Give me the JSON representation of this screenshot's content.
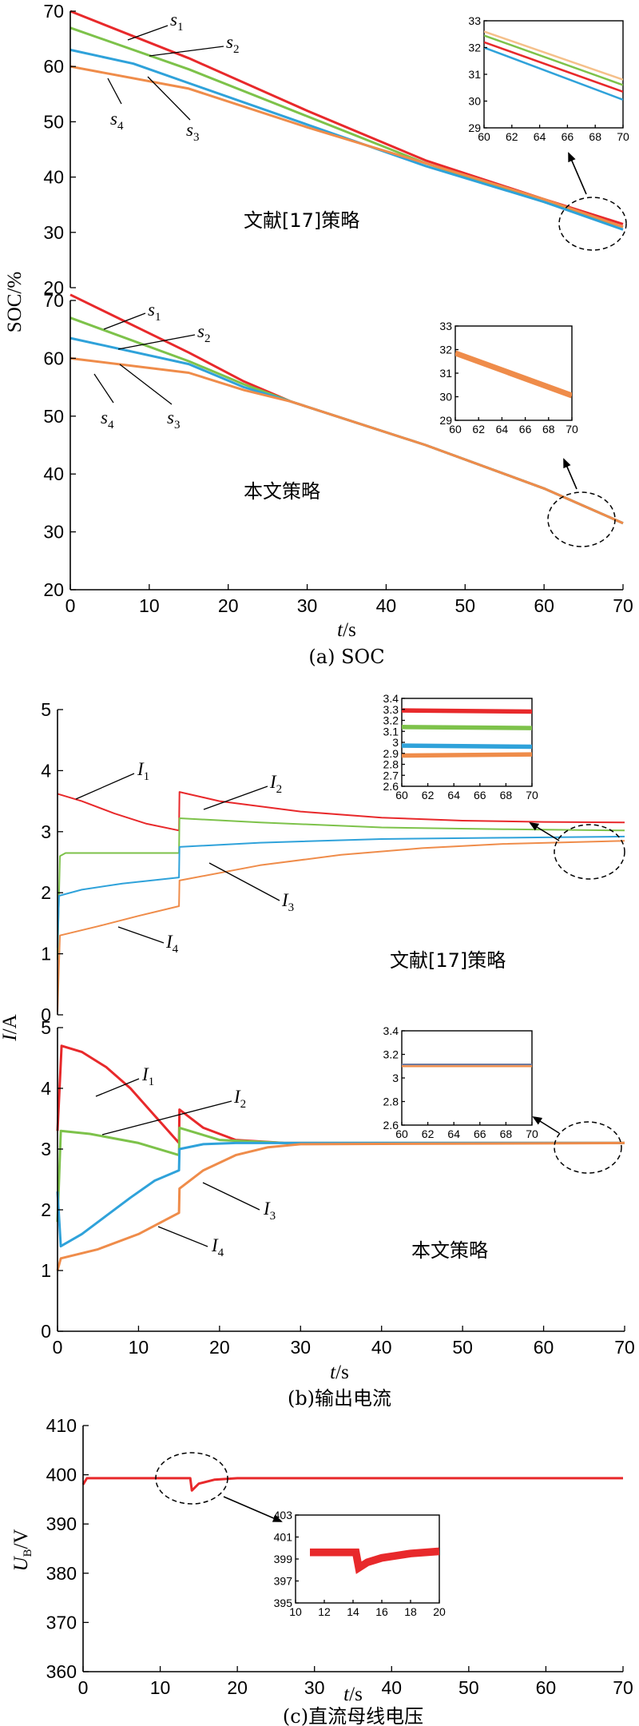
{
  "chart_data": [
    {
      "id": "soc_ref",
      "type": "line",
      "panel": "(a) SOC - upper",
      "annotation": "文献[17]策略",
      "ylabel": "SOC/%",
      "xlim": [
        0,
        70
      ],
      "ylim": [
        20,
        70
      ],
      "x_ticks": [],
      "y_ticks": [
        20,
        30,
        40,
        50,
        60,
        70
      ],
      "series": [
        {
          "name": "s1",
          "color": "#e8292b",
          "points": [
            [
              0,
              70
            ],
            [
              15,
              61.5
            ],
            [
              30,
              52
            ],
            [
              45,
              43
            ],
            [
              60,
              36
            ],
            [
              70,
              31.5
            ]
          ]
        },
        {
          "name": "s2",
          "color": "#7dc24a",
          "points": [
            [
              0,
              67
            ],
            [
              15,
              59.5
            ],
            [
              30,
              51
            ],
            [
              45,
              42.5
            ],
            [
              60,
              35.5
            ],
            [
              70,
              31
            ]
          ]
        },
        {
          "name": "s3",
          "color": "#2fa2da",
          "points": [
            [
              0,
              63
            ],
            [
              8,
              60.5
            ],
            [
              15,
              57
            ],
            [
              30,
              49.5
            ],
            [
              45,
              42
            ],
            [
              60,
              35.5
            ],
            [
              70,
              30.5
            ]
          ]
        },
        {
          "name": "s4",
          "color": "#ef8c4a",
          "points": [
            [
              0,
              60
            ],
            [
              15,
              56
            ],
            [
              30,
              49
            ],
            [
              45,
              42.5
            ],
            [
              60,
              36
            ],
            [
              70,
              31
            ]
          ]
        }
      ],
      "inset": {
        "xlim": [
          60,
          70
        ],
        "ylim": [
          29,
          33
        ],
        "x_ticks": [
          60,
          62,
          64,
          66,
          68,
          70
        ],
        "y_ticks": [
          29,
          30,
          31,
          32,
          33
        ],
        "series": [
          {
            "color": "#f5c08a",
            "points": [
              [
                60,
                32.6
              ],
              [
                70,
                30.8
              ]
            ]
          },
          {
            "color": "#7dc24a",
            "points": [
              [
                60,
                32.45
              ],
              [
                70,
                30.6
              ]
            ]
          },
          {
            "color": "#e8292b",
            "points": [
              [
                60,
                32.2
              ],
              [
                70,
                30.35
              ]
            ]
          },
          {
            "color": "#2fa2da",
            "points": [
              [
                60,
                32.0
              ],
              [
                70,
                30.05
              ]
            ]
          }
        ]
      }
    },
    {
      "id": "soc_ours",
      "type": "line",
      "panel": "(a) SOC - lower",
      "annotation": "本文策略",
      "xlabel": "t/s",
      "xlim": [
        0,
        70
      ],
      "ylim": [
        20,
        70
      ],
      "x_ticks": [
        0,
        10,
        20,
        30,
        40,
        50,
        60,
        70
      ],
      "y_ticks": [
        20,
        30,
        40,
        50,
        60,
        70
      ],
      "series": [
        {
          "name": "s1",
          "color": "#e8292b",
          "points": [
            [
              0,
              71
            ],
            [
              15,
              61
            ],
            [
              22,
              56
            ],
            [
              28,
              52.5
            ],
            [
              45,
              45
            ],
            [
              60,
              37.5
            ],
            [
              70,
              31.5
            ]
          ]
        },
        {
          "name": "s2",
          "color": "#7dc24a",
          "points": [
            [
              0,
              67
            ],
            [
              15,
              59.5
            ],
            [
              22,
              55.5
            ],
            [
              28,
              52.5
            ],
            [
              45,
              45
            ],
            [
              60,
              37.5
            ],
            [
              70,
              31.5
            ]
          ]
        },
        {
          "name": "s3",
          "color": "#2fa2da",
          "points": [
            [
              0,
              63.5
            ],
            [
              15,
              59
            ],
            [
              22,
              55
            ],
            [
              28,
              52.5
            ],
            [
              45,
              45
            ],
            [
              60,
              37.5
            ],
            [
              70,
              31.5
            ]
          ]
        },
        {
          "name": "s4",
          "color": "#ef8c4a",
          "points": [
            [
              0,
              60
            ],
            [
              15,
              57.5
            ],
            [
              22,
              54.5
            ],
            [
              28,
              52.5
            ],
            [
              45,
              45
            ],
            [
              60,
              37.5
            ],
            [
              70,
              31.5
            ]
          ]
        }
      ],
      "inset": {
        "xlim": [
          60,
          70
        ],
        "ylim": [
          29,
          33
        ],
        "x_ticks": [
          60,
          62,
          64,
          66,
          68,
          70
        ],
        "y_ticks": [
          29,
          30,
          31,
          32,
          33
        ],
        "series": [
          {
            "color": "#ef8c4a",
            "points": [
              [
                60,
                31.85
              ],
              [
                70,
                30.05
              ]
            ],
            "band": 0.12
          }
        ]
      }
    },
    {
      "id": "cur_ref",
      "type": "line",
      "panel": "(b) output current - upper",
      "annotation": "文献[17]策略",
      "ylabel": "I/A",
      "xlim": [
        0,
        70
      ],
      "ylim": [
        0,
        5
      ],
      "x_ticks": [],
      "y_ticks": [
        0,
        1,
        2,
        3,
        4,
        5
      ],
      "series": [
        {
          "name": "I1",
          "color": "#e8292b",
          "points": [
            [
              0,
              3.62
            ],
            [
              3,
              3.5
            ],
            [
              7,
              3.3
            ],
            [
              11,
              3.13
            ],
            [
              15,
              3.02
            ],
            [
              15.05,
              3.65
            ],
            [
              20,
              3.5
            ],
            [
              30,
              3.33
            ],
            [
              40,
              3.23
            ],
            [
              50,
              3.18
            ],
            [
              60,
              3.16
            ],
            [
              70,
              3.15
            ]
          ]
        },
        {
          "name": "I2",
          "color": "#7dc24a",
          "points": [
            [
              0,
              0.9
            ],
            [
              0.3,
              2.6
            ],
            [
              1,
              2.65
            ],
            [
              15,
              2.65
            ],
            [
              15.05,
              3.22
            ],
            [
              25,
              3.15
            ],
            [
              40,
              3.07
            ],
            [
              55,
              3.04
            ],
            [
              70,
              3.02
            ]
          ]
        },
        {
          "name": "I3",
          "color": "#2fa2da",
          "points": [
            [
              0,
              1.1
            ],
            [
              0.2,
              1.95
            ],
            [
              3,
              2.05
            ],
            [
              8,
              2.15
            ],
            [
              15,
              2.25
            ],
            [
              15.05,
              2.75
            ],
            [
              25,
              2.82
            ],
            [
              40,
              2.88
            ],
            [
              55,
              2.9
            ],
            [
              70,
              2.92
            ]
          ]
        },
        {
          "name": "I4",
          "color": "#ef8c4a",
          "points": [
            [
              0,
              0.05
            ],
            [
              0.3,
              1.3
            ],
            [
              5,
              1.45
            ],
            [
              10,
              1.62
            ],
            [
              15,
              1.78
            ],
            [
              15.05,
              2.2
            ],
            [
              25,
              2.45
            ],
            [
              35,
              2.62
            ],
            [
              45,
              2.73
            ],
            [
              55,
              2.8
            ],
            [
              70,
              2.85
            ]
          ]
        }
      ],
      "inset": {
        "xlim": [
          60,
          70
        ],
        "ylim": [
          2.6,
          3.4
        ],
        "x_ticks": [
          60,
          62,
          64,
          66,
          68,
          70
        ],
        "y_ticks": [
          2.6,
          2.7,
          2.8,
          2.9,
          3.0,
          3.1,
          3.2,
          3.3,
          3.4
        ],
        "series": [
          {
            "color": "#e8292b",
            "points": [
              [
                60,
                3.29
              ],
              [
                70,
                3.28
              ]
            ],
            "band": 0.02
          },
          {
            "color": "#7dc24a",
            "points": [
              [
                60,
                3.14
              ],
              [
                70,
                3.13
              ]
            ],
            "band": 0.02
          },
          {
            "color": "#2fa2da",
            "points": [
              [
                60,
                2.97
              ],
              [
                70,
                2.96
              ]
            ],
            "band": 0.02
          },
          {
            "color": "#ef8c4a",
            "points": [
              [
                60,
                2.88
              ],
              [
                70,
                2.89
              ]
            ],
            "band": 0.02
          }
        ]
      }
    },
    {
      "id": "cur_ours",
      "type": "line",
      "panel": "(b) output current - lower",
      "annotation": "本文策略",
      "xlabel": "t/s",
      "xlim": [
        0,
        70
      ],
      "ylim": [
        0,
        5
      ],
      "x_ticks": [
        0,
        10,
        20,
        30,
        40,
        50,
        60,
        70
      ],
      "y_ticks": [
        0,
        1,
        2,
        3,
        4,
        5
      ],
      "series": [
        {
          "name": "I1",
          "color": "#e8292b",
          "points": [
            [
              0,
              3.3
            ],
            [
              0.5,
              4.7
            ],
            [
              3,
              4.6
            ],
            [
              6,
              4.35
            ],
            [
              9,
              4.0
            ],
            [
              12,
              3.55
            ],
            [
              15,
              3.1
            ],
            [
              15.05,
              3.65
            ],
            [
              18,
              3.35
            ],
            [
              22,
              3.15
            ],
            [
              28,
              3.1
            ],
            [
              70,
              3.1
            ]
          ]
        },
        {
          "name": "I2",
          "color": "#7dc24a",
          "points": [
            [
              0,
              1.8
            ],
            [
              0.4,
              3.3
            ],
            [
              4,
              3.25
            ],
            [
              10,
              3.1
            ],
            [
              15,
              2.9
            ],
            [
              15.05,
              3.35
            ],
            [
              20,
              3.15
            ],
            [
              28,
              3.1
            ],
            [
              70,
              3.1
            ]
          ]
        },
        {
          "name": "I3",
          "color": "#2fa2da",
          "points": [
            [
              0,
              2.3
            ],
            [
              0.4,
              1.4
            ],
            [
              3,
              1.6
            ],
            [
              6,
              1.9
            ],
            [
              9,
              2.2
            ],
            [
              12,
              2.48
            ],
            [
              15,
              2.65
            ],
            [
              15.05,
              3.0
            ],
            [
              18,
              3.08
            ],
            [
              22,
              3.1
            ],
            [
              70,
              3.1
            ]
          ]
        },
        {
          "name": "I4",
          "color": "#ef8c4a",
          "points": [
            [
              0,
              1.0
            ],
            [
              0.4,
              1.2
            ],
            [
              5,
              1.35
            ],
            [
              10,
              1.6
            ],
            [
              15,
              1.95
            ],
            [
              15.05,
              2.35
            ],
            [
              18,
              2.65
            ],
            [
              22,
              2.9
            ],
            [
              26,
              3.03
            ],
            [
              30,
              3.08
            ],
            [
              70,
              3.1
            ]
          ]
        }
      ],
      "inset": {
        "xlim": [
          60,
          70
        ],
        "ylim": [
          2.6,
          3.4
        ],
        "x_ticks": [
          60,
          62,
          64,
          66,
          68,
          70
        ],
        "y_ticks": [
          2.6,
          2.8,
          3.0,
          3.2,
          3.4
        ],
        "series": [
          {
            "color": "#ef8c4a",
            "points": [
              [
                60,
                3.1
              ],
              [
                70,
                3.1
              ]
            ],
            "band": 0.008
          },
          {
            "color": "#6e7aa0",
            "points": [
              [
                60,
                3.115
              ],
              [
                70,
                3.115
              ]
            ],
            "band": 0.003
          }
        ]
      }
    },
    {
      "id": "bus_voltage",
      "type": "line",
      "panel": "(c) DC bus voltage",
      "ylabel": "UB/V",
      "xlabel": "t/s",
      "xlim": [
        0,
        70
      ],
      "ylim": [
        360,
        410
      ],
      "x_ticks": [
        0,
        10,
        20,
        30,
        40,
        50,
        60,
        70
      ],
      "y_ticks": [
        360,
        370,
        380,
        390,
        400,
        410
      ],
      "series": [
        {
          "name": "UB",
          "color": "#e8292b",
          "points": [
            [
              0,
              398
            ],
            [
              0.5,
              399.3
            ],
            [
              13.9,
              399.3
            ],
            [
              14.1,
              396.8
            ],
            [
              15,
              398.2
            ],
            [
              17,
              399
            ],
            [
              20,
              399.3
            ],
            [
              70,
              399.3
            ]
          ]
        }
      ],
      "inset": {
        "xlim": [
          10,
          20
        ],
        "ylim": [
          395,
          403
        ],
        "x_ticks": [
          10,
          12,
          14,
          16,
          18,
          20
        ],
        "y_ticks": [
          395,
          397,
          399,
          401,
          403
        ],
        "series": [
          {
            "color": "#e8292b",
            "points": [
              [
                11,
                399.6
              ],
              [
                14.2,
                399.6
              ],
              [
                14.4,
                398.2
              ],
              [
                15,
                398.7
              ],
              [
                16,
                399.1
              ],
              [
                17,
                399.3
              ],
              [
                18,
                399.5
              ],
              [
                20,
                399.7
              ]
            ],
            "band": 0.35
          }
        ]
      }
    }
  ],
  "labels": {
    "soc_ylabel": "SOC/%",
    "cur_ylabel": "I/A",
    "ub_ylabel_main": "U",
    "ub_ylabel_sub": "B",
    "ub_ylabel_unit": "/V",
    "t_label": "t",
    "t_unit": "/s",
    "caption_a": "(a) SOC",
    "caption_b": "(b)输出电流",
    "caption_c": "(c)直流母线电压",
    "ref_strategy": "文献[17]策略",
    "our_strategy": "本文策略",
    "s_letter": "s",
    "i_letter": "I",
    "sub_1": "1",
    "sub_2": "2",
    "sub_3": "3",
    "sub_4": "4"
  }
}
